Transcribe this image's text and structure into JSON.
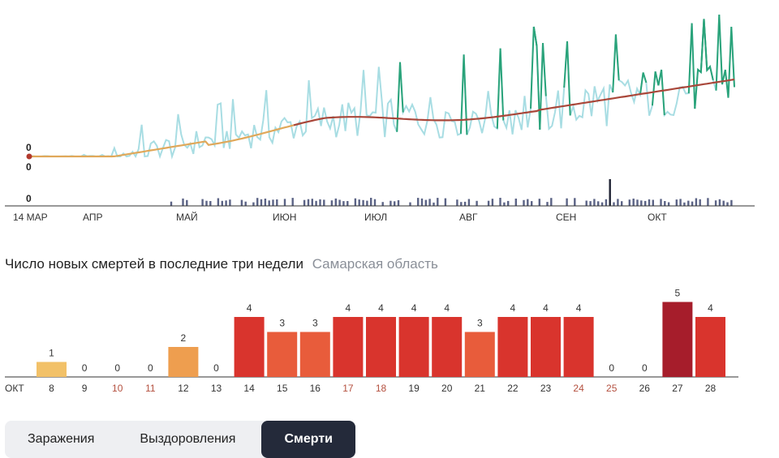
{
  "overview": {
    "month_labels": [
      "14 МАР",
      "АПР",
      "МАЙ",
      "ИЮН",
      "ИЮЛ",
      "АВГ",
      "СЕН",
      "ОКТ"
    ],
    "start_values": [
      "0",
      "0",
      "0"
    ],
    "colors": {
      "cases_light": "#a8dde3",
      "cases_dark": "#2aa37a",
      "avg_orange": "#e0a85a",
      "avg_red": "#a9473a",
      "deaths_bar": "#5b6385",
      "deaths_bar_dark": "#1e2233",
      "marker": "#b23a2e",
      "axis": "#333333"
    }
  },
  "title": {
    "main": "Число новых смертей в последние три недели",
    "region": "Самарская область"
  },
  "chart_data": {
    "type": "bar",
    "title": "Число новых смертей в последние три недели",
    "axis_month": "ОКТ",
    "categories": [
      "8",
      "9",
      "10",
      "11",
      "12",
      "13",
      "14",
      "15",
      "16",
      "17",
      "18",
      "19",
      "20",
      "21",
      "22",
      "23",
      "24",
      "25",
      "26",
      "27",
      "28"
    ],
    "values": [
      1,
      0,
      0,
      0,
      2,
      0,
      4,
      3,
      3,
      4,
      4,
      4,
      4,
      3,
      4,
      4,
      4,
      0,
      0,
      5,
      4
    ],
    "weekend_days": [
      "10",
      "11",
      "17",
      "18",
      "24",
      "25"
    ],
    "ylim": [
      0,
      5
    ],
    "colors": {
      "1": "#f2c168",
      "2": "#ee9e4f",
      "3": "#e85c3b",
      "4": "#d9342d",
      "5": "#a61d2b",
      "weekend_label": "#b4503f",
      "label": "#333333"
    }
  },
  "tabs": {
    "cases": "Заражения",
    "recoveries": "Выздоровления",
    "deaths": "Смерти"
  }
}
